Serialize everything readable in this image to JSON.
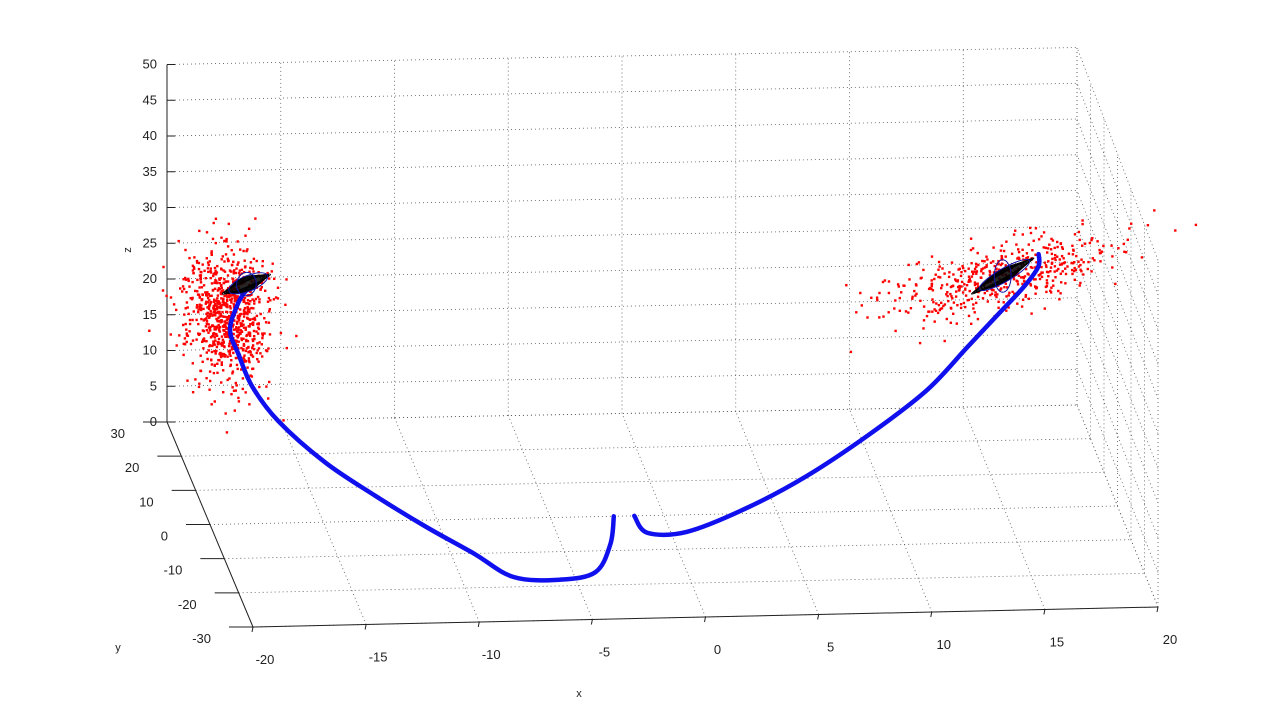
{
  "chart_data": {
    "type": "scatter",
    "title": "",
    "xlabel": "x",
    "ylabel": "y",
    "zlabel": "z",
    "xlim": [
      -20,
      20
    ],
    "ylim": [
      -30,
      30
    ],
    "zlim": [
      0,
      50
    ],
    "x_ticks": [
      "-20",
      "-15",
      "-10",
      "-5",
      "0",
      "5",
      "10",
      "15",
      "20"
    ],
    "y_ticks": [
      "-30",
      "-20",
      "-10",
      "0",
      "10",
      "20",
      "30"
    ],
    "z_ticks": [
      "0",
      "5",
      "10",
      "15",
      "20",
      "25",
      "30",
      "35",
      "40",
      "45",
      "50"
    ],
    "grid": true,
    "colors": {
      "trajectory": "#1010ee",
      "points": "#ff0000",
      "ellipsoid_outline": "#1010aa",
      "ellipsoid_core": "#000000"
    },
    "trajectory": {
      "description_free": true,
      "segments": [
        [
          [
            -2.2,
            0,
            0
          ],
          [
            -2.6,
            -4,
            -2
          ],
          [
            -3.5,
            -8,
            -4
          ],
          [
            -5.2,
            -10,
            -4
          ],
          [
            -7.3,
            -11,
            -3
          ],
          [
            -9,
            -10,
            0
          ],
          [
            -11,
            -8,
            3
          ],
          [
            -13,
            -5,
            6
          ],
          [
            -15,
            -1,
            9
          ],
          [
            -16.8,
            3,
            13
          ],
          [
            -17.7,
            7,
            16
          ],
          [
            -18.1,
            10,
            19
          ],
          [
            -18.3,
            13,
            21
          ],
          [
            -17.8,
            16,
            23
          ],
          [
            -17.3,
            18,
            24
          ],
          [
            -16.8,
            19,
            24.5
          ]
        ],
        [
          [
            -1.3,
            0,
            0
          ],
          [
            -0.9,
            -3,
            -1
          ],
          [
            0.7,
            -5,
            0
          ],
          [
            3.2,
            -5,
            3
          ],
          [
            6,
            -4,
            7
          ],
          [
            9,
            -2,
            12
          ],
          [
            11.6,
            0,
            17
          ],
          [
            13.5,
            2,
            22
          ],
          [
            15,
            3.5,
            26
          ],
          [
            16.2,
            5,
            29
          ],
          [
            16.9,
            6.5,
            31
          ],
          [
            17,
            8,
            32
          ]
        ]
      ]
    },
    "clusters": [
      {
        "center": [
          -18.3,
          15,
          22
        ],
        "spread": [
          0.9,
          4,
          6
        ],
        "ellipsoid_center": [
          -17.2,
          19,
          24.5
        ]
      },
      {
        "center": [
          15.3,
          6,
          30
        ],
        "spread": [
          1.2,
          1.5,
          2.5
        ],
        "ellipsoid_center": [
          15.3,
          6,
          30
        ]
      }
    ]
  }
}
